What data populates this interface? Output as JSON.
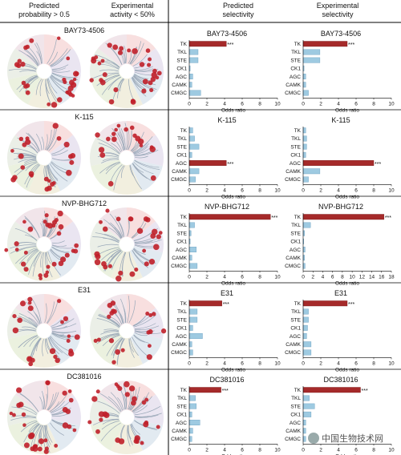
{
  "header": {
    "col1": [
      "Predicted",
      "probability > 0.5"
    ],
    "col2": [
      "Experimental",
      "activity < 50%"
    ],
    "col3": [
      "Predicted",
      "selectivity"
    ],
    "col4": [
      "Experimental",
      "selectivity"
    ]
  },
  "watermark": "中国生物技术网",
  "colors": {
    "significant_bar": "#a52a2a",
    "other_bar": "#9ecae1",
    "bar_edge": "#6a9fc0",
    "dot": "#c0202a"
  },
  "rows": [
    {
      "compound": "BAY73-4506",
      "tree_labels": [
        "TK",
        "TKL",
        "STE",
        "CK1",
        "AGC",
        "CAMK",
        "CMGC"
      ],
      "dots_predicted": 28,
      "dots_experimental": 32
    },
    {
      "compound": "K-115",
      "tree_labels": [
        "TK",
        "TKL",
        "STE",
        "CK1",
        "AGC",
        "CAMK",
        "CMGC"
      ],
      "dots_predicted": 24,
      "dots_experimental": 18
    },
    {
      "compound": "NVP-BHG712",
      "tree_labels": [
        "TK",
        "TKL",
        "STE",
        "CK1",
        "AGC",
        "CAMK",
        "CMGC"
      ],
      "dots_predicted": 30,
      "dots_experimental": 27
    },
    {
      "compound": "E31",
      "tree_labels": [
        "TK",
        "TKL",
        "STE",
        "CK1",
        "AGC",
        "CAMK",
        "CMGC"
      ],
      "dots_predicted": 22,
      "dots_experimental": 20
    },
    {
      "compound": "DC381016",
      "tree_labels": [
        "TK",
        "TKL",
        "STE",
        "CK1",
        "AGC",
        "CAMK",
        "CMGC"
      ],
      "dots_predicted": 30,
      "dots_experimental": 28
    }
  ],
  "chart_data": [
    {
      "type": "bar",
      "orientation": "horizontal",
      "title": "BAY73-4506",
      "panel": "predicted",
      "categories": [
        "TK",
        "TKL",
        "STE",
        "CK1",
        "AGC",
        "CAMK",
        "CMGC"
      ],
      "values": [
        4.2,
        1.0,
        1.0,
        0.1,
        0.4,
        0.3,
        1.3
      ],
      "significance": [
        "***",
        "",
        "",
        "",
        "",
        "",
        ""
      ],
      "xlabel": "Odds ratio",
      "xlim": [
        0,
        10
      ],
      "xticks": [
        0,
        2,
        4,
        6,
        8,
        10
      ]
    },
    {
      "type": "bar",
      "orientation": "horizontal",
      "title": "BAY73-4506",
      "panel": "experimental",
      "categories": [
        "TK",
        "TKL",
        "STE",
        "CK1",
        "AGC",
        "CAMK",
        "CMGC"
      ],
      "values": [
        5.0,
        1.9,
        1.9,
        0.1,
        0.3,
        0.3,
        0.6
      ],
      "significance": [
        "***",
        "",
        "",
        "",
        "",
        "",
        ""
      ],
      "xlabel": "Odds ratio",
      "xlim": [
        0,
        10
      ],
      "xticks": [
        0,
        2,
        4,
        6,
        8,
        10
      ]
    },
    {
      "type": "bar",
      "orientation": "horizontal",
      "title": "K-115",
      "panel": "predicted",
      "categories": [
        "TK",
        "TKL",
        "STE",
        "CK1",
        "AGC",
        "CAMK",
        "CMGC"
      ],
      "values": [
        0.4,
        0.6,
        1.1,
        0.3,
        4.2,
        1.1,
        0.7
      ],
      "significance": [
        "",
        "",
        "",
        "",
        "***",
        "",
        ""
      ],
      "xlabel": "Odds ratio",
      "xlim": [
        0,
        10
      ],
      "xticks": [
        0,
        2,
        4,
        6,
        8,
        10
      ]
    },
    {
      "type": "bar",
      "orientation": "horizontal",
      "title": "K-115",
      "panel": "experimental",
      "categories": [
        "TK",
        "TKL",
        "STE",
        "CK1",
        "AGC",
        "CAMK",
        "CMGC"
      ],
      "values": [
        0.3,
        0.4,
        0.4,
        0.3,
        8.0,
        1.9,
        0.6
      ],
      "significance": [
        "",
        "",
        "",
        "",
        "***",
        "",
        ""
      ],
      "xlabel": "Odds ratio",
      "xlim": [
        0,
        10
      ],
      "xticks": [
        0,
        2,
        4,
        6,
        8,
        10
      ]
    },
    {
      "type": "bar",
      "orientation": "horizontal",
      "title": "NVP-BHG712",
      "panel": "predicted",
      "categories": [
        "TK",
        "TKL",
        "STE",
        "CK1",
        "AGC",
        "CAMK",
        "CMGC"
      ],
      "values": [
        9.2,
        0.6,
        0.2,
        0.1,
        0.8,
        0.3,
        0.9
      ],
      "significance": [
        "***",
        "",
        "",
        "",
        "",
        "",
        ""
      ],
      "xlabel": "Odds ratio",
      "xlim": [
        0,
        10
      ],
      "xticks": [
        0,
        2,
        4,
        6,
        8,
        10
      ]
    },
    {
      "type": "bar",
      "orientation": "horizontal",
      "title": "NVP-BHG712",
      "panel": "experimental",
      "categories": [
        "TK",
        "TKL",
        "STE",
        "CK1",
        "AGC",
        "CAMK",
        "CMGC"
      ],
      "values": [
        16.5,
        1.5,
        0.3,
        0.1,
        0.4,
        0.3,
        0.4
      ],
      "significance": [
        "***",
        "",
        "",
        "",
        "",
        "",
        ""
      ],
      "xlabel": "Odds ratio",
      "xlim": [
        0,
        18
      ],
      "xticks": [
        0,
        2,
        4,
        6,
        8,
        10,
        12,
        14,
        16,
        18
      ]
    },
    {
      "type": "bar",
      "orientation": "horizontal",
      "title": "E31",
      "panel": "predicted",
      "categories": [
        "TK",
        "TKL",
        "STE",
        "CK1",
        "AGC",
        "CAMK",
        "CMGC"
      ],
      "values": [
        3.7,
        0.9,
        0.9,
        0.4,
        1.5,
        0.3,
        0.4
      ],
      "significance": [
        "***",
        "",
        "",
        "",
        "",
        "",
        ""
      ],
      "xlabel": "Odds ratio",
      "xlim": [
        0,
        10
      ],
      "xticks": [
        0,
        2,
        4,
        6,
        8,
        10
      ]
    },
    {
      "type": "bar",
      "orientation": "horizontal",
      "title": "E31",
      "panel": "experimental",
      "categories": [
        "TK",
        "TKL",
        "STE",
        "CK1",
        "AGC",
        "CAMK",
        "CMGC"
      ],
      "values": [
        5.0,
        0.6,
        0.6,
        0.5,
        0.4,
        0.9,
        0.9
      ],
      "significance": [
        "***",
        "",
        "",
        "",
        "",
        "",
        ""
      ],
      "xlabel": "Odds ratio",
      "xlim": [
        0,
        10
      ],
      "xticks": [
        0,
        2,
        4,
        6,
        8,
        10
      ]
    },
    {
      "type": "bar",
      "orientation": "horizontal",
      "title": "DC381016",
      "panel": "predicted",
      "categories": [
        "TK",
        "TKL",
        "STE",
        "CK1",
        "AGC",
        "CAMK",
        "CMGC"
      ],
      "values": [
        3.6,
        0.7,
        0.8,
        0.3,
        1.2,
        0.4,
        0.3
      ],
      "significance": [
        "***",
        "",
        "",
        "",
        "",
        "",
        ""
      ],
      "xlabel": "Odds ratio",
      "xlim": [
        0,
        10
      ],
      "xticks": [
        0,
        2,
        4,
        6,
        8,
        10
      ]
    },
    {
      "type": "bar",
      "orientation": "horizontal",
      "title": "DC381016",
      "panel": "experimental",
      "categories": [
        "TK",
        "TKL",
        "STE",
        "CK1",
        "AGC",
        "CAMK",
        "CMGC"
      ],
      "values": [
        6.5,
        0.7,
        1.3,
        0.9,
        0.3,
        0.3,
        0.3
      ],
      "significance": [
        "***",
        "",
        "",
        "",
        "",
        "",
        ""
      ],
      "xlabel": "Odds ratio",
      "xlim": [
        0,
        10
      ],
      "xticks": [
        0,
        2,
        4,
        6,
        8,
        10
      ]
    }
  ]
}
